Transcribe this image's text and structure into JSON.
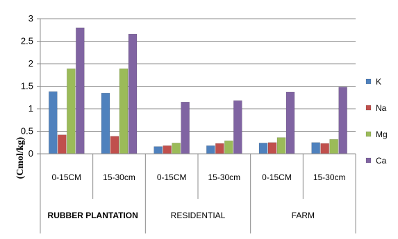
{
  "chart_data": {
    "type": "bar",
    "ylabel": "(Cmol/kg)",
    "ylim": [
      0,
      3
    ],
    "yticks": [
      "0",
      "0.5",
      "1",
      "1.5",
      "2",
      "2.5",
      "3"
    ],
    "grid": true,
    "legend_position": "right",
    "groups": [
      {
        "label": "RUBBER PLANTATION",
        "categories": [
          "0-15CM",
          "15-30cm"
        ]
      },
      {
        "label": "RESIDENTIAL",
        "categories": [
          "0-15CM",
          "15-30cm"
        ]
      },
      {
        "label": "FARM",
        "categories": [
          "0-15CM",
          "15-30cm"
        ]
      }
    ],
    "series": [
      {
        "name": "K",
        "color": "#4f81bd",
        "values": [
          1.38,
          1.35,
          0.16,
          0.18,
          0.24,
          0.25
        ]
      },
      {
        "name": "Na",
        "color": "#c0504d",
        "values": [
          0.42,
          0.39,
          0.18,
          0.23,
          0.25,
          0.23
        ]
      },
      {
        "name": "Mg",
        "color": "#9bbb59",
        "values": [
          1.89,
          1.89,
          0.24,
          0.29,
          0.36,
          0.32
        ]
      },
      {
        "name": "Ca",
        "color": "#8064a2",
        "values": [
          2.8,
          2.66,
          1.15,
          1.18,
          1.37,
          1.48
        ]
      }
    ]
  }
}
